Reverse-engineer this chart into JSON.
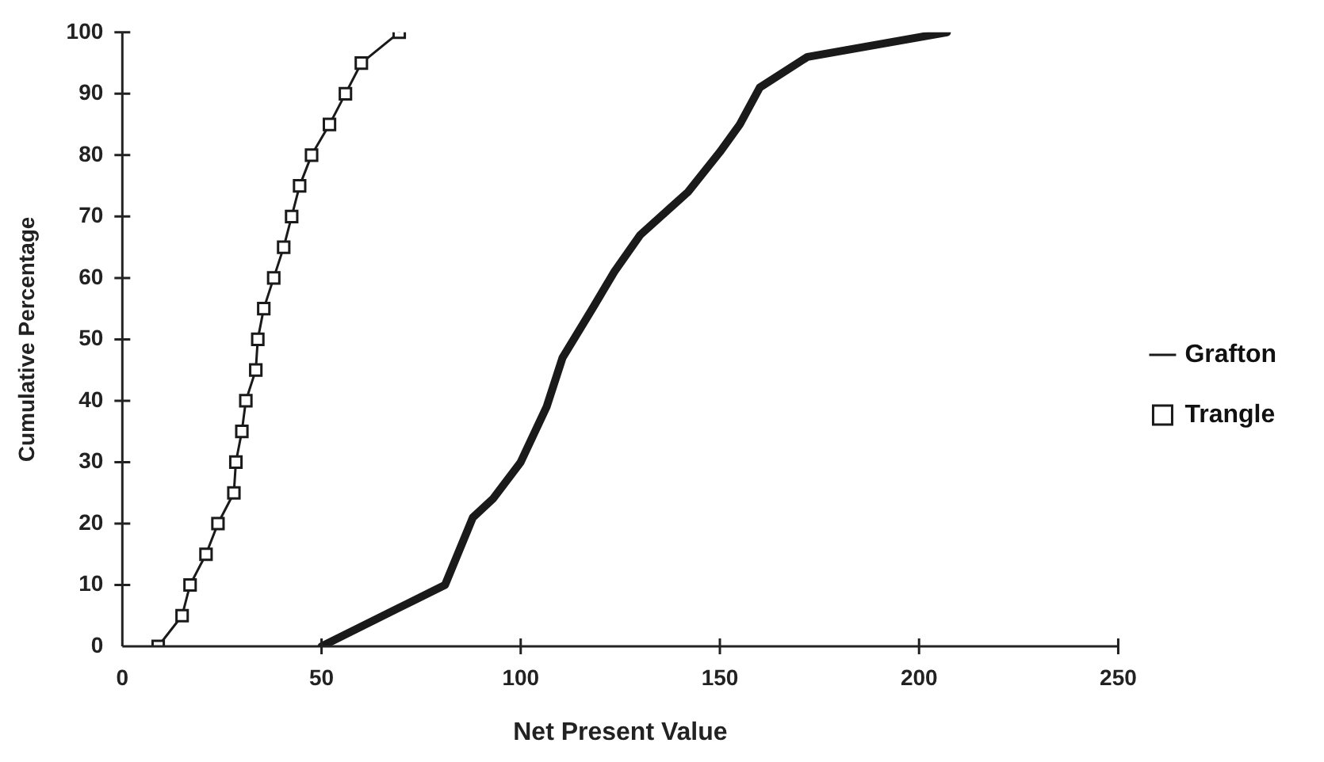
{
  "chart_data": {
    "type": "line",
    "xlabel": "Net Present Value",
    "ylabel": "Cumulative Percentage",
    "xlim": [
      0,
      250
    ],
    "xticks": [
      0,
      50,
      100,
      150,
      200,
      250
    ],
    "ylim": [
      0,
      100
    ],
    "yticks": [
      0,
      10,
      20,
      30,
      40,
      50,
      60,
      70,
      80,
      90,
      100
    ],
    "grid": false,
    "legend": "right",
    "series": [
      {
        "name": "Grafton",
        "color": "#1a1a1a",
        "marker": "none",
        "x": [
          50,
          81,
          88,
          93,
          100,
          106.5,
          110.5,
          118,
          123.5,
          130,
          142,
          150,
          155,
          160,
          172,
          207
        ],
        "values": [
          0,
          10,
          21,
          24,
          30,
          39,
          47,
          55,
          61,
          67,
          74,
          80.5,
          85,
          91,
          96,
          100
        ]
      },
      {
        "name": "Trangle",
        "color": "#1a1a1a",
        "marker": "square",
        "x": [
          9,
          15,
          17,
          21,
          24,
          28,
          28.5,
          30,
          31,
          33.5,
          34,
          35.5,
          38,
          40.5,
          42.5,
          44.5,
          47.5,
          52,
          56,
          60,
          69.5
        ],
        "values": [
          0,
          5,
          10,
          15,
          20,
          25,
          30,
          35,
          40,
          45,
          50,
          55,
          60,
          65,
          70,
          75,
          80,
          85,
          90,
          95,
          100
        ]
      }
    ]
  }
}
